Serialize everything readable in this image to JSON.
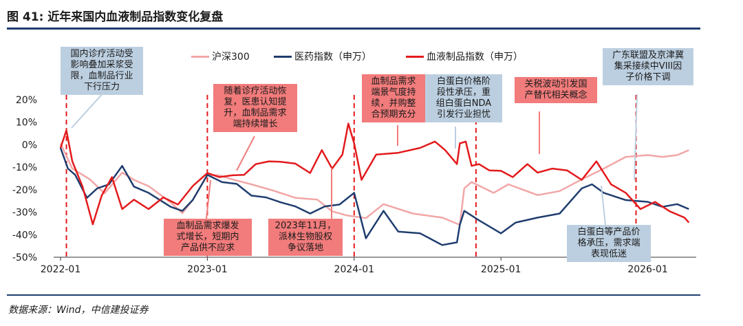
{
  "figure": {
    "title": "图 41: 近年来国内血液制品指数变化复盘",
    "source": "数据来源：Wind，中信建投证券"
  },
  "annotations": [
    {
      "id": "a1",
      "text": "国内诊疗活动受\n影响叠加采浆受\n限，血制品行业\n下行压力",
      "style": "blue"
    },
    {
      "id": "a2",
      "text": "随着诊疗活动恢\n复，医患认知提\n升，血制品需求\n端持续增长",
      "style": "red"
    },
    {
      "id": "a3",
      "text": "血制品需求爆发\n式增长，短期内\n产品供不应求",
      "style": "red"
    },
    {
      "id": "a4",
      "text": "2023年11月，\n派林生物股权\n争议落地",
      "style": "red"
    },
    {
      "id": "a5",
      "text": "血制品需求\n端景气度持\n续，并购整\n合预期充分",
      "style": "red"
    },
    {
      "id": "a6",
      "text": "白蛋白价格阶\n段性承压，重\n组白蛋白NDA\n引发行业担忧",
      "style": "blue"
    },
    {
      "id": "a7",
      "text": "关税波动引发国\n产替代相关概念",
      "style": "red"
    },
    {
      "id": "a8",
      "text": "广东联盟及京津冀\n集采接续中VIII因\n子价格下调",
      "style": "blue"
    },
    {
      "id": "a9",
      "text": "白蛋白等产品价\n格承压，需求端\n表现低迷",
      "style": "blue"
    }
  ],
  "chart_data": {
    "type": "line",
    "ylim": [
      -50,
      20
    ],
    "yticks": [
      20,
      10,
      0,
      -10,
      -20,
      -30,
      -40,
      -50
    ],
    "ytick_labels": [
      "20%",
      "10%",
      "0%",
      "-10%",
      "-20%",
      "-30%",
      "-40%",
      "-50%"
    ],
    "xlim": [
      2022.0,
      2026.33
    ],
    "xticks": [
      2022.0,
      2023.0,
      2024.0,
      2025.0,
      2026.0
    ],
    "xtick_labels": [
      "2022-01",
      "2023-01",
      "2024-01",
      "2025-01",
      "2026-01"
    ],
    "event_lines_x": [
      2022.04,
      2023.0,
      2024.0,
      2024.83,
      2025.92
    ],
    "legend_position": "top-center",
    "series": [
      {
        "name": "沪深300",
        "color": "#f2a6a6",
        "x": [
          2022.0,
          2022.08,
          2022.2,
          2022.3,
          2022.42,
          2022.5,
          2022.6,
          2022.75,
          2022.83,
          2022.9,
          2023.0,
          2023.08,
          2023.17,
          2023.3,
          2023.45,
          2023.6,
          2023.75,
          2023.85,
          2023.95,
          2024.08,
          2024.2,
          2024.4,
          2024.6,
          2024.72,
          2024.75,
          2024.8,
          2024.95,
          2025.05,
          2025.25,
          2025.4,
          2025.55,
          2025.7,
          2025.85,
          2026.0,
          2026.1,
          2026.2,
          2026.28
        ],
        "values": [
          0,
          -10,
          -16,
          -21,
          -13,
          -15,
          -19,
          -25,
          -31,
          -24,
          -14,
          -13,
          -16,
          -17,
          -21,
          -23,
          -25,
          -29,
          -32,
          -32,
          -27,
          -30,
          -33,
          -35,
          -20,
          -16,
          -22,
          -17,
          -23,
          -20,
          -16,
          -10,
          -6,
          -4,
          -6,
          -4,
          -3
        ]
      },
      {
        "name": "医药指数（申万）",
        "color": "#1f3d6e",
        "x": [
          2022.0,
          2022.05,
          2022.1,
          2022.18,
          2022.25,
          2022.33,
          2022.42,
          2022.5,
          2022.6,
          2022.75,
          2022.83,
          2022.9,
          2023.0,
          2023.1,
          2023.2,
          2023.3,
          2023.4,
          2023.5,
          2023.6,
          2023.7,
          2023.8,
          2023.9,
          2024.0,
          2024.08,
          2024.2,
          2024.3,
          2024.45,
          2024.6,
          2024.7,
          2024.72,
          2024.75,
          2024.85,
          2025.0,
          2025.1,
          2025.25,
          2025.4,
          2025.55,
          2025.62,
          2025.7,
          2025.85,
          2026.0,
          2026.1,
          2026.2,
          2026.28
        ],
        "values": [
          -2,
          -10,
          -14,
          -23,
          -20,
          -17,
          -10,
          -18,
          -22,
          -27,
          -30,
          -24,
          -14,
          -16,
          -18,
          -22,
          -24,
          -25,
          -28,
          -30,
          -28,
          -26,
          -22,
          -41,
          -30,
          -38,
          -40,
          -44,
          -44,
          -35,
          -30,
          -33,
          -40,
          -34,
          -33,
          -30,
          -20,
          -17,
          -22,
          -24,
          -26,
          -27,
          -27,
          -28
        ]
      },
      {
        "name": "血液制品指数（申万）",
        "color": "#e31a1c",
        "x": [
          2022.0,
          2022.04,
          2022.08,
          2022.15,
          2022.22,
          2022.28,
          2022.35,
          2022.42,
          2022.5,
          2022.6,
          2022.7,
          2022.8,
          2022.9,
          2023.0,
          2023.08,
          2023.17,
          2023.25,
          2023.33,
          2023.42,
          2023.5,
          2023.6,
          2023.7,
          2023.78,
          2023.85,
          2023.92,
          2023.96,
          2024.0,
          2024.05,
          2024.15,
          2024.3,
          2024.45,
          2024.55,
          2024.62,
          2024.7,
          2024.72,
          2024.76,
          2024.8,
          2024.85,
          2024.92,
          2025.0,
          2025.08,
          2025.18,
          2025.25,
          2025.35,
          2025.45,
          2025.55,
          2025.65,
          2025.75,
          2025.85,
          2025.95,
          2026.05,
          2026.15,
          2026.25,
          2026.28
        ],
        "values": [
          -2,
          7,
          -8,
          -18,
          -36,
          -22,
          -15,
          -28,
          -25,
          -28,
          -24,
          -26,
          -19,
          -12,
          -15,
          -13,
          -14,
          -8,
          -8,
          -7,
          -9,
          -12,
          -3,
          -10,
          -5,
          10,
          0,
          -15,
          -5,
          -3,
          -2,
          2,
          -3,
          -8,
          0,
          2,
          -10,
          -8,
          -12,
          -11,
          -15,
          -8,
          -13,
          -10,
          -12,
          -15,
          -8,
          -17,
          -22,
          -28,
          -26,
          -29,
          -33,
          -34
        ]
      }
    ]
  }
}
